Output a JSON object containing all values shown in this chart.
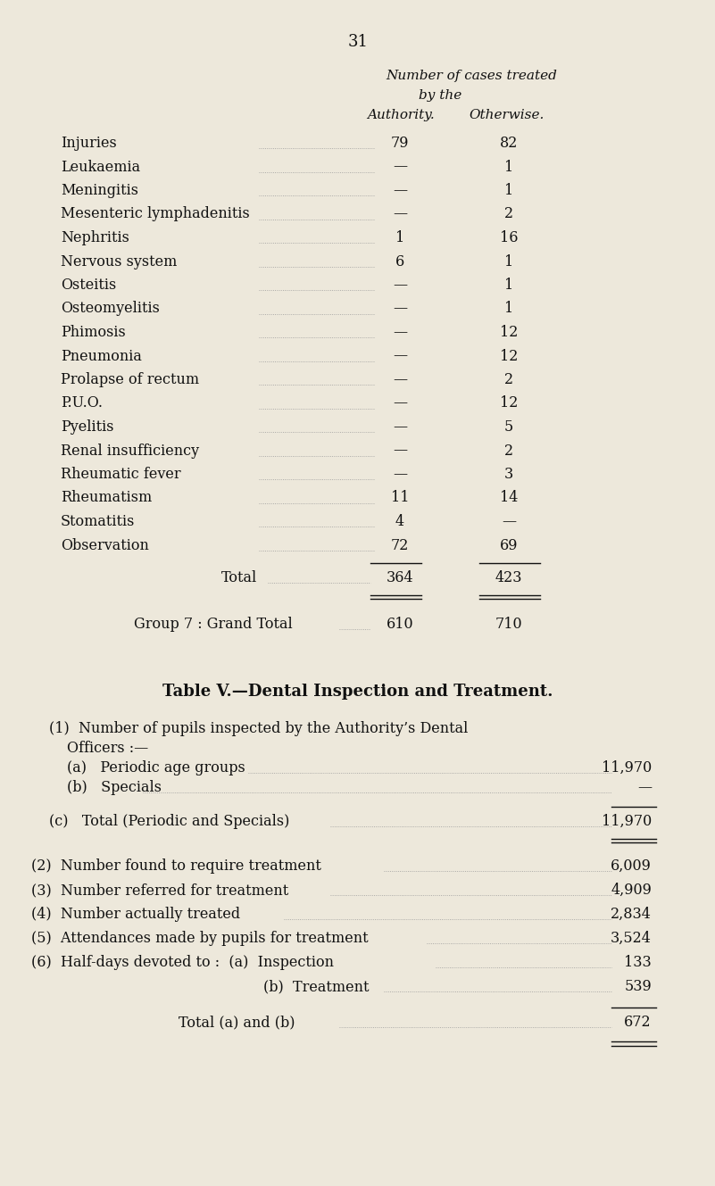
{
  "page_number": "31",
  "bg_color": "#ede8db",
  "text_color": "#111111",
  "header_line1": "Number of cases treated",
  "header_line2": "by the",
  "header_col1": "Authority.",
  "header_col2": "Otherwise.",
  "rows": [
    {
      "label": "Injuries",
      "col1": "79",
      "col2": "82"
    },
    {
      "label": "Leukaemia",
      "col1": "—",
      "col2": "1"
    },
    {
      "label": "Meningitis",
      "col1": "—",
      "col2": "1"
    },
    {
      "label": "Mesenteric lymphadenitis",
      "col1": "—",
      "col2": "2"
    },
    {
      "label": "Nephritis",
      "col1": "1",
      "col2": "16"
    },
    {
      "label": "Nervous system",
      "col1": "6",
      "col2": "1"
    },
    {
      "label": "Osteitis",
      "col1": "—",
      "col2": "1"
    },
    {
      "label": "Osteomyelitis",
      "col1": "—",
      "col2": "1"
    },
    {
      "label": "Phimosis",
      "col1": "—",
      "col2": "12"
    },
    {
      "label": "Pneumonia",
      "col1": "—",
      "col2": "12"
    },
    {
      "label": "Prolapse of rectum",
      "col1": "—",
      "col2": "2"
    },
    {
      "label": "P.U.O.",
      "col1": "—",
      "col2": "12"
    },
    {
      "label": "Pyelitis",
      "col1": "—",
      "col2": "5"
    },
    {
      "label": "Renal insufficiency",
      "col1": "—",
      "col2": "2"
    },
    {
      "label": "Rheumatic fever",
      "col1": "—",
      "col2": "3"
    },
    {
      "label": "Rheumatism",
      "col1": "11",
      "col2": "14"
    },
    {
      "label": "Stomatitis",
      "col1": "4",
      "col2": "—"
    },
    {
      "label": "Observation",
      "col1": "72",
      "col2": "69"
    }
  ],
  "total_label": "Total",
  "total_col1": "364",
  "total_col2": "423",
  "grand_total_label": "Group 7 : Grand Total",
  "grand_total_dots": ".....",
  "grand_total_col1": "610",
  "grand_total_col2": "710",
  "table_v_title": "Table V.—Dental Inspection and Treatment.",
  "sec1_line1": "(1)  Number of pupils inspected by the Authority’s Dental",
  "sec1_line2": "Officers :—",
  "row_a_label": "(a)   Periodic age groups",
  "row_a_val": "11,970",
  "row_b_label": "(b)   Specials",
  "row_b_val": "—",
  "row_c_label": "(c)   Total (Periodic and Specials)",
  "row_c_val": "11,970",
  "row2_label": "(2)  Number found to require treatment",
  "row2_val": "6,009",
  "row3_label": "(3)  Number referred for treatment",
  "row3_val": "4,909",
  "row4_label": "(4)  Number actually treated",
  "row4_val": "2,834",
  "row5_label": "(5)  Attendances made by pupils for treatment",
  "row5_val": "3,524",
  "row6_label": "(6)  Half-days devoted to :  (a)  Inspection",
  "row6_val": "133",
  "row6b_label": "(b)  Treatment",
  "row6b_val": "539",
  "total_ab_label": "Total (a) and (b)",
  "total_ab_val": "672",
  "dot_color": "#999999"
}
